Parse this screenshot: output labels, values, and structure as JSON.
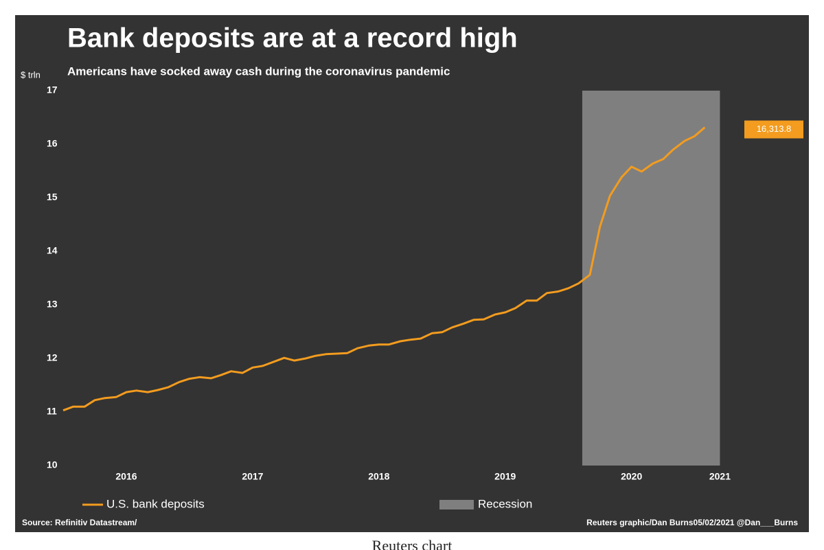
{
  "chart_data": {
    "type": "line",
    "title": "Bank deposits are at a record high",
    "subtitle": "Americans have socked away cash during the coronavirus pandemic",
    "y_label": "$ trln",
    "x": [
      2016.0,
      2016.08,
      2016.17,
      2016.25,
      2016.33,
      2016.42,
      2016.5,
      2016.58,
      2016.67,
      2016.75,
      2016.83,
      2016.92,
      2017.0,
      2017.08,
      2017.17,
      2017.25,
      2017.33,
      2017.42,
      2017.5,
      2017.58,
      2017.67,
      2017.75,
      2017.83,
      2017.92,
      2018.0,
      2018.08,
      2018.17,
      2018.25,
      2018.33,
      2018.42,
      2018.5,
      2018.58,
      2018.67,
      2018.75,
      2018.83,
      2018.92,
      2019.0,
      2019.08,
      2019.17,
      2019.25,
      2019.33,
      2019.42,
      2019.5,
      2019.58,
      2019.67,
      2019.75,
      2019.83,
      2019.92,
      2020.0,
      2020.08,
      2020.17,
      2020.25,
      2020.33,
      2020.42,
      2020.5,
      2020.58,
      2020.67,
      2020.75,
      2020.83,
      2020.92,
      2021.0,
      2021.08
    ],
    "series": [
      {
        "name": "U.S. bank deposits",
        "color": "#f39c1f",
        "values": [
          11.03,
          11.1,
          11.1,
          11.22,
          11.26,
          11.28,
          11.37,
          11.4,
          11.37,
          11.41,
          11.46,
          11.56,
          11.62,
          11.65,
          11.63,
          11.69,
          11.76,
          11.73,
          11.83,
          11.86,
          11.94,
          12.01,
          11.96,
          12.0,
          12.05,
          12.08,
          12.09,
          12.1,
          12.19,
          12.24,
          12.26,
          12.26,
          12.32,
          12.35,
          12.37,
          12.47,
          12.49,
          12.58,
          12.65,
          12.72,
          12.73,
          12.82,
          12.86,
          12.94,
          13.08,
          13.08,
          13.22,
          13.25,
          13.31,
          13.4,
          13.56,
          14.46,
          15.04,
          15.38,
          15.58,
          15.49,
          15.64,
          15.72,
          15.9,
          16.06,
          16.15,
          16.3138
        ],
        "value_labels": [
          null,
          null,
          null,
          null,
          null,
          null,
          null,
          null,
          null,
          null,
          null,
          null,
          null,
          null,
          null,
          null,
          null,
          null,
          null,
          null,
          null,
          null,
          null,
          null,
          null,
          null,
          null,
          null,
          null,
          null,
          null,
          null,
          null,
          null,
          null,
          null,
          null,
          null,
          null,
          null,
          null,
          null,
          null,
          null,
          null,
          null,
          null,
          null,
          null,
          null,
          null,
          null,
          null,
          null,
          null,
          null,
          null,
          null,
          null,
          null,
          null,
          "16,313.8"
        ]
      }
    ],
    "shaded_regions": [
      {
        "name": "Recession",
        "color": "#7f7f7f",
        "start": 2020.11,
        "end": 2021.2
      }
    ],
    "xlim": [
      2016,
      2021.6
    ],
    "xticks": [
      {
        "value": 2016.5,
        "label": "2016"
      },
      {
        "value": 2017.5,
        "label": "2017"
      },
      {
        "value": 2018.5,
        "label": "2018"
      },
      {
        "value": 2019.5,
        "label": "2019"
      },
      {
        "value": 2020.5,
        "label": "2020"
      },
      {
        "value": 2021.2,
        "label": "2021"
      }
    ],
    "ylim": [
      10,
      17
    ],
    "yticks": [
      10,
      11,
      12,
      13,
      14,
      15,
      16,
      17
    ],
    "grid": false,
    "source": "Source: Refinitiv Datastream/",
    "credit": "Reuters graphic/Dan Burns05/02/2021 @Dan___Burns"
  },
  "caption": "Reuters chart"
}
